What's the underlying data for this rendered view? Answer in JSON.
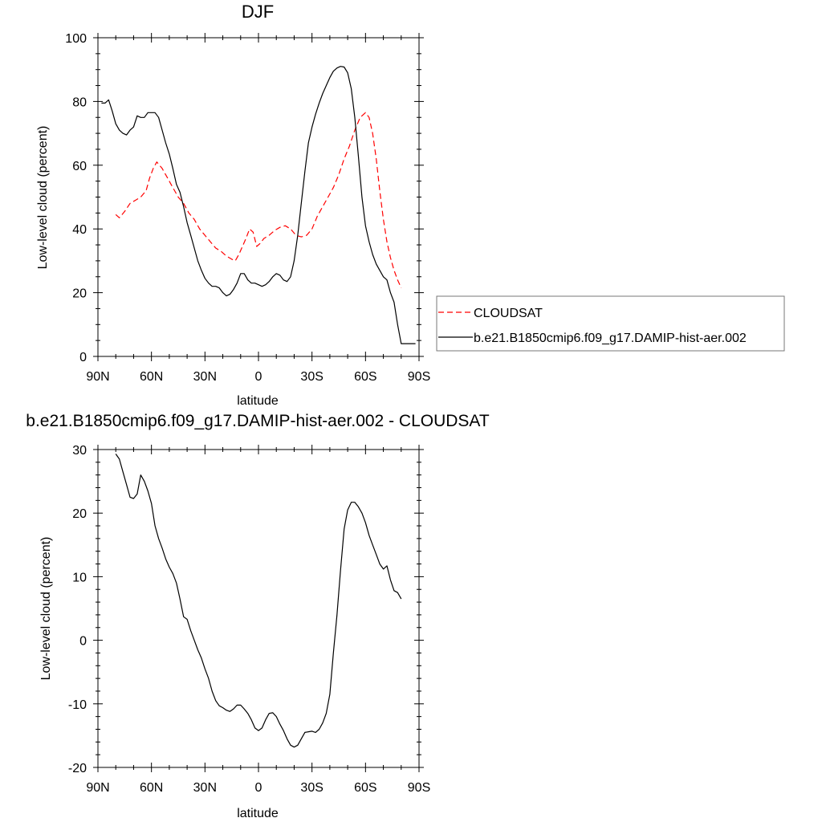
{
  "chart_data": [
    {
      "type": "line",
      "title": "DJF",
      "xlabel": "latitude",
      "ylabel": "Low-level cloud (percent)",
      "xlim": [
        -90,
        90
      ],
      "ylim": [
        0,
        100
      ],
      "xticks": [
        -90,
        -60,
        -30,
        0,
        30,
        60,
        90
      ],
      "xtick_labels": [
        "90N",
        "60N",
        "30N",
        "0",
        "30S",
        "60S",
        "90S"
      ],
      "yticks": [
        0,
        20,
        40,
        60,
        80,
        100
      ],
      "ytick_labels": [
        "0",
        "20",
        "40",
        "60",
        "80",
        "100"
      ],
      "legend": "right",
      "series": [
        {
          "name": "CLOUDSAT",
          "style": "dashed",
          "color": "#ff0000",
          "x": [
            -80,
            -78,
            -75,
            -72,
            -69,
            -66,
            -63,
            -61,
            -59,
            -57,
            -54,
            -51,
            -48,
            -45,
            -42,
            -39,
            -36,
            -33,
            -30,
            -27,
            -24,
            -21,
            -18,
            -15,
            -13,
            -11,
            -9,
            -7,
            -5,
            -3,
            -1,
            1,
            3,
            6,
            9,
            12,
            15,
            18,
            21,
            24,
            27,
            30,
            33,
            36,
            39,
            42,
            45,
            48,
            51,
            54,
            57,
            60,
            62,
            64,
            66,
            68,
            70,
            72,
            74,
            76,
            78,
            80
          ],
          "y": [
            44.5,
            43.5,
            45.5,
            48,
            49,
            50,
            52,
            56,
            59,
            61,
            59,
            56,
            53,
            50,
            48,
            45,
            43,
            40,
            38,
            36,
            34,
            33,
            31.5,
            30.5,
            30,
            32,
            34.5,
            37,
            40,
            39,
            34.5,
            35.5,
            37,
            38,
            39.5,
            40.5,
            41,
            40,
            38,
            37.5,
            38,
            40,
            44,
            47,
            50,
            53,
            57,
            62,
            66,
            71,
            75,
            76.5,
            75,
            70,
            62,
            52,
            43,
            36,
            31,
            27,
            24,
            21.5
          ]
        },
        {
          "name": "b.e21.B1850cmip6.f09_g17.DAMIP-hist-aer.002",
          "style": "solid",
          "color": "#000000",
          "x": [
            -88,
            -86,
            -84,
            -82,
            -80,
            -78,
            -76,
            -74,
            -72,
            -70,
            -68,
            -66,
            -64,
            -62,
            -60,
            -58,
            -56,
            -54,
            -52,
            -50,
            -48,
            -46,
            -44,
            -42,
            -40,
            -38,
            -36,
            -34,
            -32,
            -30,
            -28,
            -26,
            -24,
            -22,
            -20,
            -18,
            -16,
            -14,
            -12,
            -10,
            -8,
            -6,
            -4,
            -2,
            0,
            2,
            4,
            6,
            8,
            10,
            12,
            14,
            16,
            18,
            20,
            22,
            24,
            26,
            28,
            30,
            32,
            34,
            36,
            38,
            40,
            42,
            44,
            46,
            48,
            50,
            52,
            54,
            56,
            58,
            60,
            62,
            64,
            66,
            68,
            70,
            72,
            74,
            76,
            78,
            80,
            82,
            84,
            86,
            88
          ],
          "y": [
            79.5,
            79.5,
            80.5,
            77,
            73,
            71,
            70,
            69.5,
            71,
            72,
            75.5,
            75,
            75,
            76.5,
            76.5,
            76.5,
            75,
            71,
            67,
            63.5,
            59,
            54,
            51.5,
            47,
            42,
            38,
            34,
            30,
            27,
            24.5,
            23,
            22,
            22,
            21.5,
            20,
            19,
            19.5,
            21,
            23,
            26,
            26,
            24,
            23,
            23,
            22.5,
            22,
            22.5,
            23.5,
            25,
            26,
            25.5,
            24,
            23.5,
            25,
            30,
            38,
            48,
            58,
            67,
            72,
            76,
            79.5,
            82.5,
            85,
            87.5,
            89.5,
            90.5,
            91,
            90.8,
            89,
            84,
            75,
            63,
            50,
            41,
            36,
            32,
            29,
            27,
            25,
            24,
            20,
            17,
            10,
            4,
            4,
            4,
            4,
            4
          ]
        }
      ]
    },
    {
      "type": "line",
      "title": "b.e21.B1850cmip6.f09_g17.DAMIP-hist-aer.002 - CLOUDSAT",
      "xlabel": "latitude",
      "ylabel": "Low-level cloud (percent)",
      "xlim": [
        -90,
        90
      ],
      "ylim": [
        -20,
        30
      ],
      "xticks": [
        -90,
        -60,
        -30,
        0,
        30,
        60,
        90
      ],
      "xtick_labels": [
        "90N",
        "60N",
        "30N",
        "0",
        "30S",
        "60S",
        "90S"
      ],
      "yticks": [
        -20,
        -10,
        0,
        10,
        20,
        30
      ],
      "ytick_labels": [
        "-20",
        "-10",
        "0",
        "10",
        "20",
        "30"
      ],
      "series": [
        {
          "name": "b.e21.B1850cmip6.f09_g17.DAMIP-hist-aer.002 - CLOUDSAT",
          "style": "solid",
          "color": "#000000",
          "x": [
            -80,
            -78,
            -76,
            -74,
            -72,
            -70,
            -68,
            -66,
            -64,
            -62,
            -60,
            -58,
            -56,
            -54,
            -52,
            -50,
            -48,
            -46,
            -44,
            -42,
            -40,
            -38,
            -36,
            -34,
            -32,
            -30,
            -28,
            -26,
            -24,
            -22,
            -20,
            -18,
            -16,
            -14,
            -12,
            -10,
            -8,
            -6,
            -4,
            -2,
            0,
            2,
            4,
            6,
            8,
            10,
            12,
            14,
            16,
            18,
            20,
            22,
            24,
            26,
            28,
            30,
            32,
            34,
            36,
            38,
            40,
            42,
            44,
            46,
            48,
            50,
            52,
            54,
            56,
            58,
            60,
            62,
            64,
            66,
            68,
            70,
            72,
            74,
            76,
            78,
            80
          ],
          "y": [
            29.3,
            28.5,
            26.5,
            24.5,
            22.5,
            22.3,
            23,
            26,
            25,
            23.5,
            21.5,
            18,
            16,
            14.5,
            12.8,
            11.5,
            10.5,
            9,
            6.5,
            3.7,
            3.3,
            1.5,
            0,
            -1.5,
            -2.8,
            -4.5,
            -6,
            -8,
            -9.5,
            -10.3,
            -10.6,
            -11,
            -11.2,
            -10.8,
            -10.2,
            -10.2,
            -10.8,
            -11.5,
            -12.5,
            -13.8,
            -14.2,
            -13.8,
            -12.5,
            -11.5,
            -11.4,
            -12,
            -13.2,
            -14.2,
            -15.5,
            -16.5,
            -16.8,
            -16.5,
            -15.5,
            -14.5,
            -14.4,
            -14.3,
            -14.5,
            -14,
            -13,
            -11.5,
            -8.5,
            -2,
            4,
            11,
            17.5,
            20.5,
            21.7,
            21.7,
            21,
            20,
            18.5,
            16.5,
            15,
            13.5,
            12,
            11.2,
            11.7,
            9.5,
            7.8,
            7.5,
            6.5
          ]
        }
      ]
    }
  ]
}
